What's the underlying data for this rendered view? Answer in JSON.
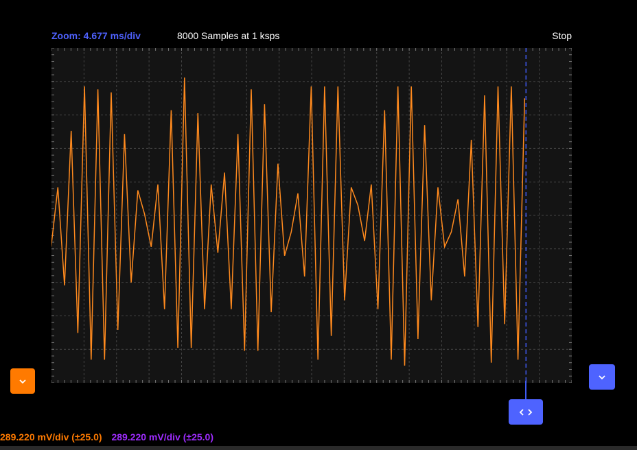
{
  "header": {
    "zoom_label": "Zoom: 4.677 ms/div",
    "samples_label": "8000 Samples at 1 ksps",
    "status_label": "Stop"
  },
  "scope": {
    "grid_color": "#444444",
    "trace_color": "#ff8a1e",
    "trigger_color": "#3f5af2",
    "trigger_position_fraction": 0.912,
    "waveform": [
      0.4,
      0.6,
      0.27,
      0.79,
      0.11,
      0.94,
      0.02,
      0.93,
      0.02,
      0.92,
      0.12,
      0.78,
      0.28,
      0.59,
      0.51,
      0.4,
      0.61,
      0.19,
      0.86,
      0.06,
      0.97,
      0.06,
      0.85,
      0.19,
      0.61,
      0.38,
      0.65,
      0.19,
      0.78,
      0.05,
      0.93,
      0.05,
      0.88,
      0.18,
      0.68,
      0.37,
      0.45,
      0.58,
      0.3,
      0.94,
      0.02,
      0.94,
      0.1,
      0.94,
      0.22,
      0.6,
      0.54,
      0.42,
      0.61,
      0.19,
      0.86,
      0.02,
      0.94,
      0.0,
      0.94,
      0.09,
      0.81,
      0.22,
      0.6,
      0.4,
      0.45,
      0.56,
      0.3,
      0.76,
      0.13,
      0.91,
      0.01,
      0.94,
      0.14,
      0.94,
      0.02,
      0.9
    ],
    "trace_shift_fraction": -0.0006
  },
  "controls": {
    "ch1_button_icon": "chevron-down-icon",
    "timebase_button_icon": "chevron-down-icon",
    "trigger_button_icon": "left-right-arrows-icon",
    "ch1_button_color": "#ff7a00",
    "timebase_button_color": "#4e63ff"
  },
  "status": {
    "ch1_scale": "289.220 mV/div (±25.0)",
    "ch2_scale": "289.220 mV/div (±25.0)",
    "ch1_color": "#ff7a00",
    "ch2_color": "#9f2cff"
  }
}
